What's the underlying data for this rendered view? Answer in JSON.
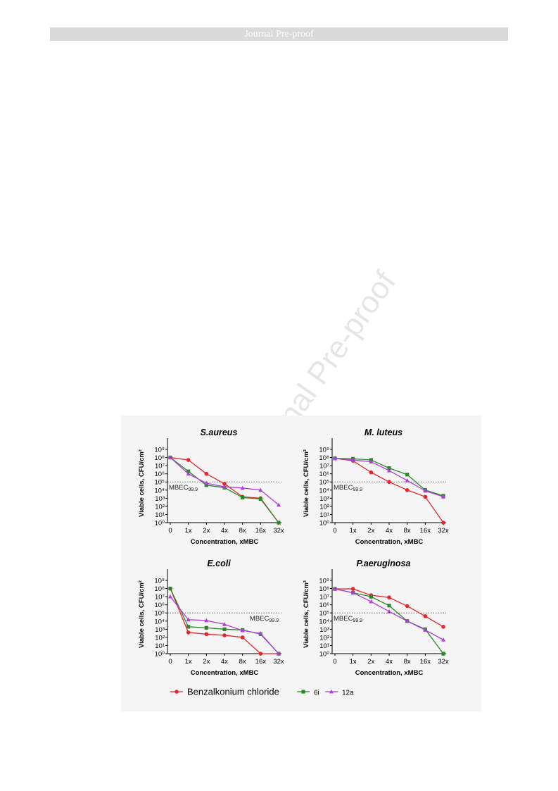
{
  "header": {
    "title": "Journal Pre-proof"
  },
  "watermark": {
    "text": "Journal Pre-proof"
  },
  "colors": {
    "Benzalkonium chloride": "#e8262a",
    "6i": "#2a8a2a",
    "12a": "#b23be0",
    "threshold": "#666666",
    "figure_bg": "#f5f5f5"
  },
  "icons": {
    "Benzalkonium chloride": "circle-marker-icon",
    "6i": "square-marker-icon",
    "12a": "triangle-marker-icon"
  },
  "chart_data": [
    {
      "type": "line",
      "title": "S.aureus",
      "xlabel": "Concentration, xMBC",
      "ylabel": "Viable cells, CFU/cm²",
      "yscale": "log",
      "ylim": [
        1,
        1000000000
      ],
      "x": [
        "0",
        "1x",
        "2x",
        "4x",
        "8x",
        "16x",
        "32x"
      ],
      "threshold": {
        "label": "MBEC99.9",
        "value": 100000
      },
      "series": [
        {
          "name": "Benzalkonium chloride",
          "values": [
            100000000,
            50000000,
            1000000,
            60000,
            1500,
            1000,
            1
          ]
        },
        {
          "name": "6i",
          "values": [
            100000000,
            2000000,
            40000,
            20000,
            1200,
            800,
            1
          ]
        },
        {
          "name": "12a",
          "values": [
            100000000,
            1000000,
            70000,
            25000,
            18000,
            10000,
            150
          ]
        }
      ]
    },
    {
      "type": "line",
      "title": "M. luteus",
      "xlabel": "Concentration, xMBC",
      "ylabel": "Viable cells, CFU/cm²",
      "yscale": "log",
      "ylim": [
        1,
        1000000000
      ],
      "x": [
        "0",
        "1x",
        "2x",
        "4x",
        "8x",
        "16x",
        "32x"
      ],
      "threshold": {
        "label": "MBEC99.9",
        "value": 100000
      },
      "series": [
        {
          "name": "Benzalkonium chloride",
          "values": [
            80000000,
            40000000,
            1500000,
            100000,
            10000,
            1500,
            1
          ]
        },
        {
          "name": "6i",
          "values": [
            80000000,
            70000000,
            50000000,
            5000000,
            800000,
            10000,
            2000
          ]
        },
        {
          "name": "12a",
          "values": [
            80000000,
            50000000,
            30000000,
            2500000,
            150000,
            8000,
            1500
          ]
        }
      ]
    },
    {
      "type": "line",
      "title": "E.coli",
      "xlabel": "Concentration, xMBC",
      "ylabel": "Viable cells, CFU/cm²",
      "yscale": "log",
      "ylim": [
        1,
        1000000000
      ],
      "x": [
        "0",
        "1x",
        "2x",
        "4x",
        "8x",
        "16x",
        "32x"
      ],
      "threshold": {
        "label": "MBEC99.9",
        "value": 100000
      },
      "series": [
        {
          "name": "Benzalkonium chloride",
          "values": [
            100000000,
            400,
            250,
            180,
            100,
            1,
            1
          ]
        },
        {
          "name": "6i",
          "values": [
            100000000,
            2000,
            1500,
            1000,
            800,
            250,
            1
          ]
        },
        {
          "name": "12a",
          "values": [
            10000000,
            15000,
            12000,
            4000,
            700,
            300,
            1
          ]
        }
      ]
    },
    {
      "type": "line",
      "title": "P.aeruginosa",
      "xlabel": "Concentration, xMBC",
      "ylabel": "Viable cells, CFU/cm²",
      "yscale": "log",
      "ylim": [
        1,
        1000000000
      ],
      "x": [
        "0",
        "1x",
        "2x",
        "4x",
        "8x",
        "16x",
        "32x"
      ],
      "threshold": {
        "label": "MBEC99.9",
        "value": 100000
      },
      "series": [
        {
          "name": "Benzalkonium chloride",
          "values": [
            90000000,
            90000000,
            15000000,
            8000000,
            700000,
            40000,
            2000
          ]
        },
        {
          "name": "6i",
          "values": [
            90000000,
            30000000,
            10000000,
            800000,
            10000,
            1000,
            1
          ]
        },
        {
          "name": "12a",
          "values": [
            90000000,
            30000000,
            2500000,
            150000,
            10000,
            800,
            50
          ]
        }
      ]
    }
  ],
  "legend": {
    "items": [
      {
        "name": "Benzalkonium chloride"
      },
      {
        "name": "6i"
      },
      {
        "name": "12a"
      }
    ]
  }
}
